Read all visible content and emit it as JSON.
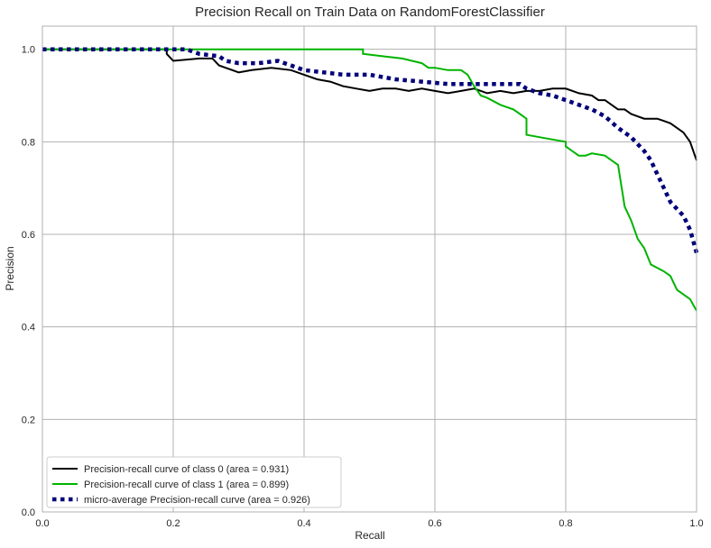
{
  "chart_data": {
    "type": "line",
    "title": "Precision Recall on Train Data on RandomForestClassifier",
    "xlabel": "Recall",
    "ylabel": "Precision",
    "xlim": [
      0.0,
      1.0
    ],
    "ylim": [
      0.0,
      1.05
    ],
    "xticks": [
      0.0,
      0.2,
      0.4,
      0.6,
      0.8,
      1.0
    ],
    "xtick_labels": [
      "0.0",
      "0.2",
      "0.4",
      "0.6",
      "0.8",
      "1.0"
    ],
    "yticks": [
      0.0,
      0.2,
      0.4,
      0.6,
      0.8,
      1.0
    ],
    "ytick_labels": [
      "0.0",
      "0.2",
      "0.4",
      "0.6",
      "0.8",
      "1.0"
    ],
    "grid": true,
    "legend_position": "lower-left",
    "series": [
      {
        "name": "Precision-recall curve of class 0 (area = 0.931)",
        "color": "#000000",
        "style": "solid",
        "x": [
          0.0,
          0.19,
          0.19,
          0.2,
          0.24,
          0.26,
          0.27,
          0.28,
          0.3,
          0.32,
          0.35,
          0.38,
          0.4,
          0.42,
          0.44,
          0.46,
          0.48,
          0.5,
          0.52,
          0.54,
          0.56,
          0.58,
          0.6,
          0.62,
          0.64,
          0.66,
          0.68,
          0.7,
          0.72,
          0.74,
          0.76,
          0.78,
          0.8,
          0.82,
          0.84,
          0.85,
          0.86,
          0.87,
          0.88,
          0.89,
          0.9,
          0.92,
          0.94,
          0.95,
          0.96,
          0.97,
          0.98,
          0.99,
          1.0
        ],
        "y": [
          1.0,
          1.0,
          0.99,
          0.975,
          0.98,
          0.98,
          0.965,
          0.96,
          0.95,
          0.955,
          0.96,
          0.955,
          0.945,
          0.935,
          0.93,
          0.92,
          0.915,
          0.91,
          0.915,
          0.915,
          0.91,
          0.915,
          0.91,
          0.905,
          0.91,
          0.915,
          0.905,
          0.91,
          0.905,
          0.91,
          0.91,
          0.915,
          0.915,
          0.905,
          0.9,
          0.89,
          0.89,
          0.88,
          0.87,
          0.87,
          0.86,
          0.85,
          0.85,
          0.845,
          0.84,
          0.83,
          0.82,
          0.8,
          0.76
        ]
      },
      {
        "name": "Precision-recall curve of class 1 (area = 0.899)",
        "color": "#00b400",
        "style": "solid",
        "x": [
          0.0,
          0.49,
          0.49,
          0.52,
          0.55,
          0.58,
          0.59,
          0.6,
          0.62,
          0.64,
          0.65,
          0.66,
          0.67,
          0.68,
          0.7,
          0.72,
          0.73,
          0.74,
          0.74,
          0.76,
          0.78,
          0.8,
          0.8,
          0.82,
          0.83,
          0.84,
          0.86,
          0.87,
          0.88,
          0.89,
          0.9,
          0.91,
          0.92,
          0.93,
          0.95,
          0.96,
          0.97,
          0.99,
          1.0
        ],
        "y": [
          1.0,
          1.0,
          0.99,
          0.985,
          0.98,
          0.97,
          0.96,
          0.96,
          0.955,
          0.955,
          0.945,
          0.92,
          0.9,
          0.895,
          0.88,
          0.87,
          0.86,
          0.85,
          0.815,
          0.81,
          0.805,
          0.8,
          0.79,
          0.77,
          0.77,
          0.775,
          0.77,
          0.76,
          0.75,
          0.66,
          0.63,
          0.59,
          0.57,
          0.535,
          0.52,
          0.51,
          0.48,
          0.46,
          0.435
        ]
      },
      {
        "name": "micro-average Precision-recall curve (area = 0.926)",
        "color": "#00007a",
        "style": "dotted",
        "x": [
          0.0,
          0.22,
          0.24,
          0.27,
          0.28,
          0.3,
          0.33,
          0.36,
          0.38,
          0.4,
          0.43,
          0.46,
          0.5,
          0.54,
          0.58,
          0.62,
          0.66,
          0.7,
          0.73,
          0.74,
          0.76,
          0.78,
          0.8,
          0.82,
          0.84,
          0.86,
          0.88,
          0.9,
          0.92,
          0.93,
          0.94,
          0.95,
          0.96,
          0.97,
          0.98,
          0.99,
          1.0
        ],
        "y": [
          1.0,
          1.0,
          0.99,
          0.985,
          0.975,
          0.97,
          0.97,
          0.975,
          0.965,
          0.955,
          0.95,
          0.945,
          0.945,
          0.935,
          0.93,
          0.925,
          0.925,
          0.925,
          0.925,
          0.915,
          0.905,
          0.9,
          0.89,
          0.88,
          0.87,
          0.855,
          0.83,
          0.81,
          0.78,
          0.76,
          0.73,
          0.7,
          0.67,
          0.655,
          0.64,
          0.61,
          0.56
        ]
      }
    ]
  }
}
